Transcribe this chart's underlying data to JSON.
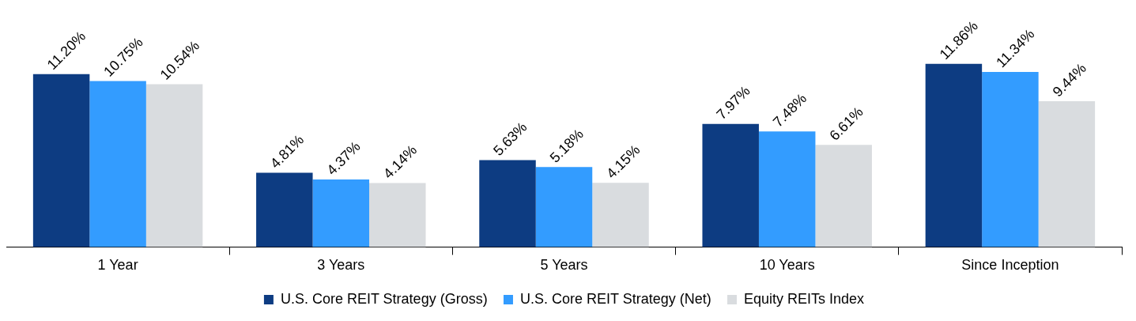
{
  "chart_data": {
    "type": "bar",
    "categories": [
      "1 Year",
      "3 Years",
      "5 Years",
      "10 Years",
      "Since Inception"
    ],
    "series": [
      {
        "name": "U.S. Core REIT Strategy (Gross)",
        "color": "#0d3c82",
        "values": [
          11.2,
          4.81,
          5.63,
          7.97,
          11.86
        ],
        "value_labels": [
          "11.20%",
          "4.81%",
          "5.63%",
          "7.97%",
          "11.86%"
        ]
      },
      {
        "name": "U.S. Core REIT Strategy (Net)",
        "color": "#339cff",
        "values": [
          10.75,
          4.37,
          5.18,
          7.48,
          11.34
        ],
        "value_labels": [
          "10.75%",
          "4.37%",
          "5.18%",
          "7.48%",
          "11.34%"
        ]
      },
      {
        "name": "Equity REITs Index",
        "color": "#d9dcdf",
        "values": [
          10.54,
          4.14,
          4.15,
          6.61,
          9.44
        ],
        "value_labels": [
          "10.54%",
          "4.14%",
          "4.15%",
          "6.61%",
          "9.44%"
        ]
      }
    ],
    "legend": "bottom",
    "grid": false,
    "tick_labels": "x"
  }
}
